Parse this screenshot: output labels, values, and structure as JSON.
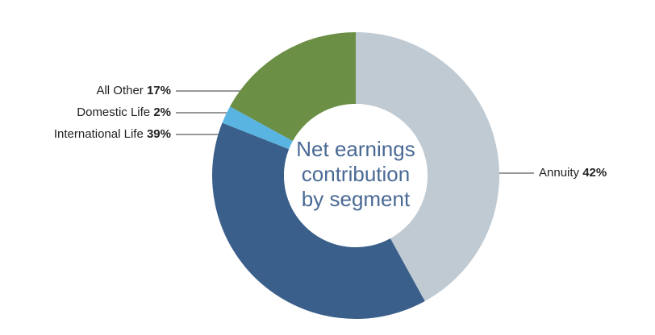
{
  "chart_data": {
    "type": "donut",
    "title": "Net earnings contribution by segment",
    "categories": [
      "Annuity",
      "International Life",
      "Domestic Life",
      "All Other"
    ],
    "values": [
      42,
      39,
      2,
      17
    ],
    "value_labels": [
      "42%",
      "39%",
      "2%",
      "17%"
    ],
    "colors": [
      "#bfcad3",
      "#3a5f8a",
      "#5ab4e2",
      "#6a8f45"
    ]
  }
}
